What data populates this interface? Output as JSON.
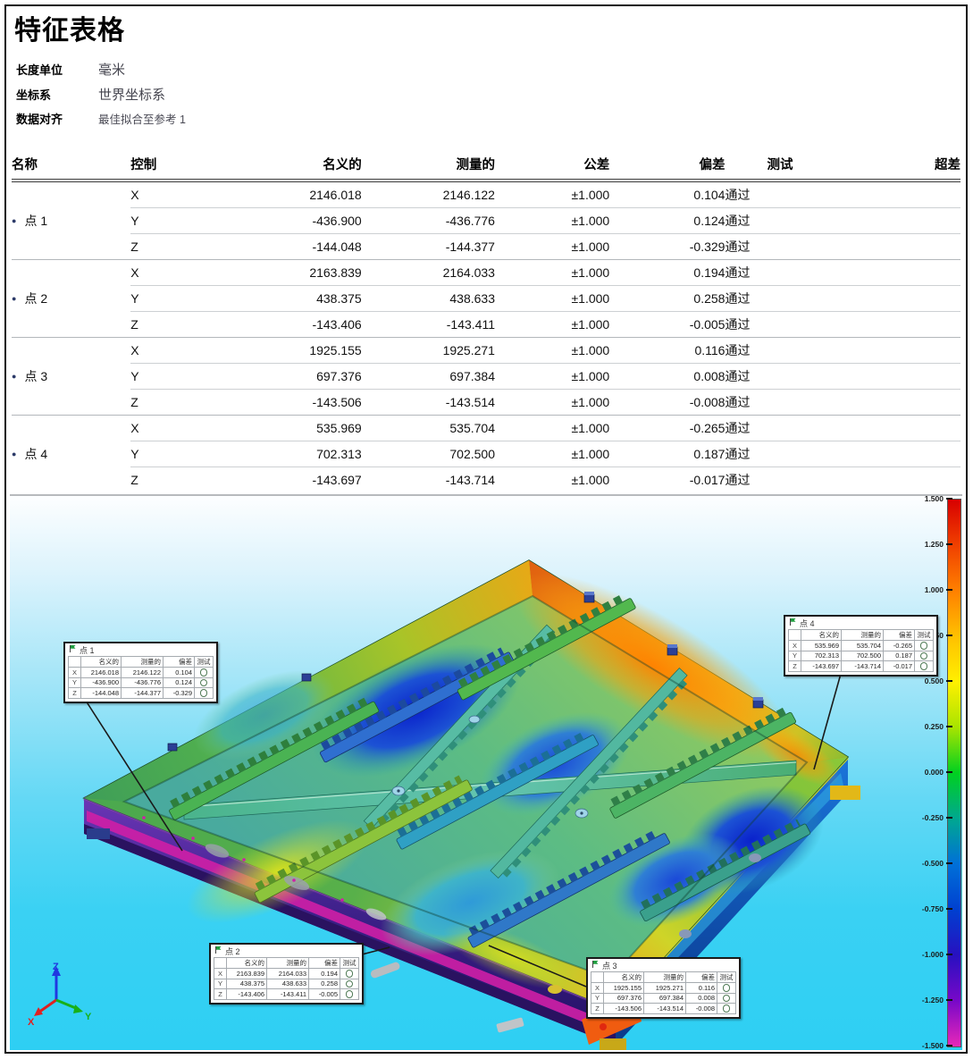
{
  "page": {
    "title": "特征表格",
    "meta": [
      {
        "label": "长度单位",
        "value": "毫米"
      },
      {
        "label": "坐标系",
        "value": "世界坐标系"
      },
      {
        "label": "数据对齐",
        "value": "最佳拟合至参考 1"
      }
    ]
  },
  "table": {
    "bullet": "●",
    "headers": [
      "名称",
      "控制",
      "名义的",
      "测量的",
      "公差",
      "偏差",
      "测试",
      "超差"
    ],
    "groups": [
      {
        "name": "点 1",
        "rows": [
          [
            "X",
            "2146.018",
            "2146.122",
            "±1.000",
            "0.104",
            "通过",
            ""
          ],
          [
            "Y",
            "-436.900",
            "-436.776",
            "±1.000",
            "0.124",
            "通过",
            ""
          ],
          [
            "Z",
            "-144.048",
            "-144.377",
            "±1.000",
            "-0.329",
            "通过",
            ""
          ]
        ]
      },
      {
        "name": "点 2",
        "rows": [
          [
            "X",
            "2163.839",
            "2164.033",
            "±1.000",
            "0.194",
            "通过",
            ""
          ],
          [
            "Y",
            "438.375",
            "438.633",
            "±1.000",
            "0.258",
            "通过",
            ""
          ],
          [
            "Z",
            "-143.406",
            "-143.411",
            "±1.000",
            "-0.005",
            "通过",
            ""
          ]
        ]
      },
      {
        "name": "点 3",
        "rows": [
          [
            "X",
            "1925.155",
            "1925.271",
            "±1.000",
            "0.116",
            "通过",
            ""
          ],
          [
            "Y",
            "697.376",
            "697.384",
            "±1.000",
            "0.008",
            "通过",
            ""
          ],
          [
            "Z",
            "-143.506",
            "-143.514",
            "±1.000",
            "-0.008",
            "通过",
            ""
          ]
        ]
      },
      {
        "name": "点 4",
        "rows": [
          [
            "X",
            "535.969",
            "535.704",
            "±1.000",
            "-0.265",
            "通过",
            ""
          ],
          [
            "Y",
            "702.313",
            "702.500",
            "±1.000",
            "0.187",
            "通过",
            ""
          ],
          [
            "Z",
            "-143.697",
            "-143.714",
            "±1.000",
            "-0.017",
            "通过",
            ""
          ]
        ]
      }
    ]
  },
  "viewport": {
    "colorbar": {
      "ticks": [
        "1.500",
        "1.250",
        "1.000",
        "0.750",
        "0.500",
        "0.250",
        "0.000",
        "-0.250",
        "-0.500",
        "-0.750",
        "-1.000",
        "-1.250",
        "-1.500"
      ],
      "colors": [
        "#d80000",
        "#f04000",
        "#ff8000",
        "#ffc000",
        "#fff000",
        "#a8e400",
        "#00d020",
        "#00a890",
        "#0070d8",
        "#0040d0",
        "#2810c0",
        "#7808c8",
        "#e828b8"
      ]
    },
    "callouts": [
      {
        "title": "点 1",
        "columns": [
          "名义的",
          "测量的",
          "偏差",
          "测试"
        ],
        "rows": [
          [
            "X",
            "2146.018",
            "2146.122",
            "0.104"
          ],
          [
            "Y",
            "-436.900",
            "-436.776",
            "0.124"
          ],
          [
            "Z",
            "-144.048",
            "-144.377",
            "-0.329"
          ]
        ]
      },
      {
        "title": "点 2",
        "columns": [
          "名义的",
          "测量的",
          "偏差",
          "测试"
        ],
        "rows": [
          [
            "X",
            "2163.839",
            "2164.033",
            "0.194"
          ],
          [
            "Y",
            "438.375",
            "438.633",
            "0.258"
          ],
          [
            "Z",
            "-143.406",
            "-143.411",
            "-0.005"
          ]
        ]
      },
      {
        "title": "点 3",
        "columns": [
          "名义的",
          "测量的",
          "偏差",
          "测试"
        ],
        "rows": [
          [
            "X",
            "1925.155",
            "1925.271",
            "0.116"
          ],
          [
            "Y",
            "697.376",
            "697.384",
            "0.008"
          ],
          [
            "Z",
            "-143.506",
            "-143.514",
            "-0.008"
          ]
        ]
      },
      {
        "title": "点 4",
        "columns": [
          "名义的",
          "测量的",
          "偏差",
          "测试"
        ],
        "rows": [
          [
            "X",
            "535.969",
            "535.704",
            "-0.265"
          ],
          [
            "Y",
            "702.313",
            "702.500",
            "0.187"
          ],
          [
            "Z",
            "-143.697",
            "-143.714",
            "-0.017"
          ]
        ]
      }
    ],
    "triad": {
      "x": "X",
      "y": "Y",
      "z": "Z",
      "x_color": "#e02020",
      "y_color": "#18b018",
      "z_color": "#2038e0"
    }
  }
}
